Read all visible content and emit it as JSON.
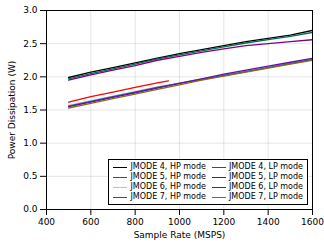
{
  "chart_data": {
    "type": "line",
    "xlabel": "Sample Rate (MSPS)",
    "ylabel": "Power Dissipation (W)",
    "xlim": [
      400,
      1600
    ],
    "ylim": [
      0,
      3
    ],
    "xticks": [
      400,
      600,
      800,
      1000,
      1200,
      1400,
      1600
    ],
    "yticks": [
      {
        "value": 0,
        "label": "0.0"
      },
      {
        "value": 0.5,
        "label": "0.5"
      },
      {
        "value": 1,
        "label": "1.0"
      },
      {
        "value": 1.5,
        "label": "1.5"
      },
      {
        "value": 2,
        "label": "2.0"
      },
      {
        "value": 2.5,
        "label": "2.5"
      },
      {
        "value": 3,
        "label": "3.0"
      }
    ],
    "grid": true,
    "legend": "lower right",
    "series": [
      {
        "name": "JMODE 4, HP mode",
        "color": "#000000",
        "x": [
          500,
          600,
          700,
          800,
          900,
          1000,
          1100,
          1200,
          1300,
          1400,
          1500,
          1600
        ],
        "values": [
          1.99,
          2.07,
          2.14,
          2.21,
          2.28,
          2.35,
          2.41,
          2.47,
          2.53,
          2.58,
          2.63,
          2.7
        ]
      },
      {
        "name": "JMODE 4, LP mode",
        "color": "#007050",
        "x": [
          500,
          600,
          700,
          800,
          900,
          1000,
          1100,
          1200,
          1300,
          1400,
          1500,
          1600
        ],
        "values": [
          1.97,
          2.05,
          2.12,
          2.19,
          2.27,
          2.33,
          2.39,
          2.45,
          2.51,
          2.56,
          2.61,
          2.67
        ]
      },
      {
        "name": "JMODE 5, LP mode",
        "color": "#800080",
        "x": [
          500,
          600,
          700,
          800,
          900,
          1000,
          1100,
          1200,
          1300,
          1400,
          1500,
          1600
        ],
        "values": [
          1.95,
          2.03,
          2.1,
          2.17,
          2.25,
          2.31,
          2.37,
          2.42,
          2.47,
          2.5,
          2.53,
          2.56
        ]
      },
      {
        "name": "JMODE 5, HP mode",
        "color": "#ff0000",
        "x": [
          500,
          600,
          700,
          800,
          900,
          950
        ],
        "values": [
          1.62,
          1.7,
          1.77,
          1.84,
          1.91,
          1.94
        ]
      },
      {
        "name": "JMODE 6, HP mode",
        "color": "#c0c0c0",
        "x": [
          500,
          600,
          700,
          800,
          900,
          1000,
          1100,
          1200,
          1300,
          1400,
          1500,
          1600
        ],
        "values": [
          1.57,
          1.64,
          1.71,
          1.78,
          1.85,
          1.91,
          1.97,
          2.03,
          2.09,
          2.15,
          2.21,
          2.27
        ]
      },
      {
        "name": "JMODE 7, HP mode",
        "color": "#1a6090",
        "x": [
          500,
          600,
          700,
          800,
          900,
          1000,
          1100,
          1200,
          1300,
          1400,
          1500,
          1600
        ],
        "values": [
          1.56,
          1.63,
          1.7,
          1.77,
          1.84,
          1.9,
          1.96,
          2.02,
          2.08,
          2.14,
          2.2,
          2.26
        ]
      },
      {
        "name": "JMODE 6, LP mode",
        "color": "#6a0dad",
        "x": [
          500,
          600,
          700,
          800,
          900,
          1000,
          1100,
          1200,
          1300,
          1400,
          1500,
          1600
        ],
        "values": [
          1.55,
          1.62,
          1.69,
          1.76,
          1.83,
          1.9,
          1.97,
          2.04,
          2.1,
          2.16,
          2.22,
          2.28
        ]
      },
      {
        "name": "JMODE 7, LP mode",
        "color": "#8b6914",
        "x": [
          500,
          600,
          700,
          800,
          900,
          1000,
          1100,
          1200,
          1300,
          1400,
          1500,
          1600
        ],
        "values": [
          1.53,
          1.6,
          1.67,
          1.74,
          1.81,
          1.88,
          1.95,
          2.01,
          2.07,
          2.13,
          2.19,
          2.25
        ]
      }
    ]
  }
}
